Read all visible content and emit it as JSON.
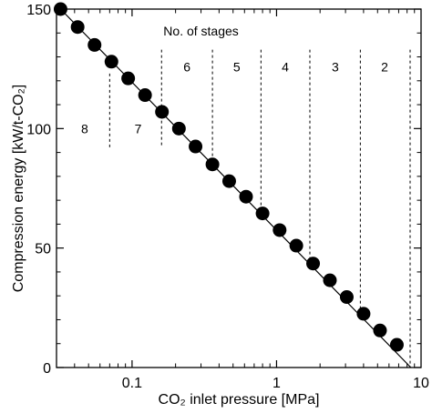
{
  "chart_data": {
    "type": "scatter",
    "title": "",
    "xlabel": "CO₂ inlet pressure [MPa]",
    "ylabel": "Compression energy [kW/t-CO₂]",
    "x_scale": "log",
    "xlim": [
      0.03,
      10
    ],
    "ylim": [
      0,
      150
    ],
    "x_ticks": [
      {
        "value": 0.1,
        "label": "0.1"
      },
      {
        "value": 1,
        "label": "1"
      },
      {
        "value": 10,
        "label": "10"
      }
    ],
    "y_ticks": [
      {
        "value": 0,
        "label": "0"
      },
      {
        "value": 50,
        "label": "50"
      },
      {
        "value": 100,
        "label": "100"
      },
      {
        "value": 150,
        "label": "150"
      }
    ],
    "grid": false,
    "series": [
      {
        "x": [
          0.032,
          0.042,
          0.055,
          0.072,
          0.094,
          0.123,
          0.161,
          0.211,
          0.275,
          0.36,
          0.47,
          0.615,
          0.8,
          1.05,
          1.37,
          1.79,
          2.34,
          3.06,
          4.0,
          5.2,
          6.8
        ],
        "y": [
          150,
          142.5,
          135,
          128,
          121,
          114,
          107,
          100,
          92.5,
          85,
          78,
          71.5,
          64.5,
          57.5,
          51,
          43.5,
          36.5,
          29.5,
          22.5,
          15.5,
          9.5
        ]
      }
    ],
    "fit_line": {
      "x": [
        0.032,
        8.5
      ],
      "y": [
        150,
        0
      ]
    },
    "stage_boundaries": [
      {
        "x": 0.07,
        "y_top": 123,
        "y_bottom": 92
      },
      {
        "x": 0.16,
        "y_top": 133,
        "y_bottom": 92
      },
      {
        "x": 0.36,
        "y_top": 133,
        "y_bottom": 85
      },
      {
        "x": 0.78,
        "y_top": 133,
        "y_bottom": 64
      },
      {
        "x": 1.7,
        "y_top": 133,
        "y_bottom": 44
      },
      {
        "x": 3.8,
        "y_top": 133,
        "y_bottom": 22
      },
      {
        "x": 8.4,
        "y_top": 133,
        "y_bottom": 0
      }
    ],
    "annotation": {
      "text": "No. of stages",
      "x": 0.3,
      "y": 139
    },
    "stage_labels": [
      {
        "text": "8",
        "x": 0.047,
        "y": 98
      },
      {
        "text": "7",
        "x": 0.11,
        "y": 98
      },
      {
        "text": "6",
        "x": 0.24,
        "y": 124
      },
      {
        "text": "5",
        "x": 0.53,
        "y": 124
      },
      {
        "text": "4",
        "x": 1.15,
        "y": 124
      },
      {
        "text": "3",
        "x": 2.55,
        "y": 124
      },
      {
        "text": "2",
        "x": 5.6,
        "y": 124
      }
    ]
  }
}
